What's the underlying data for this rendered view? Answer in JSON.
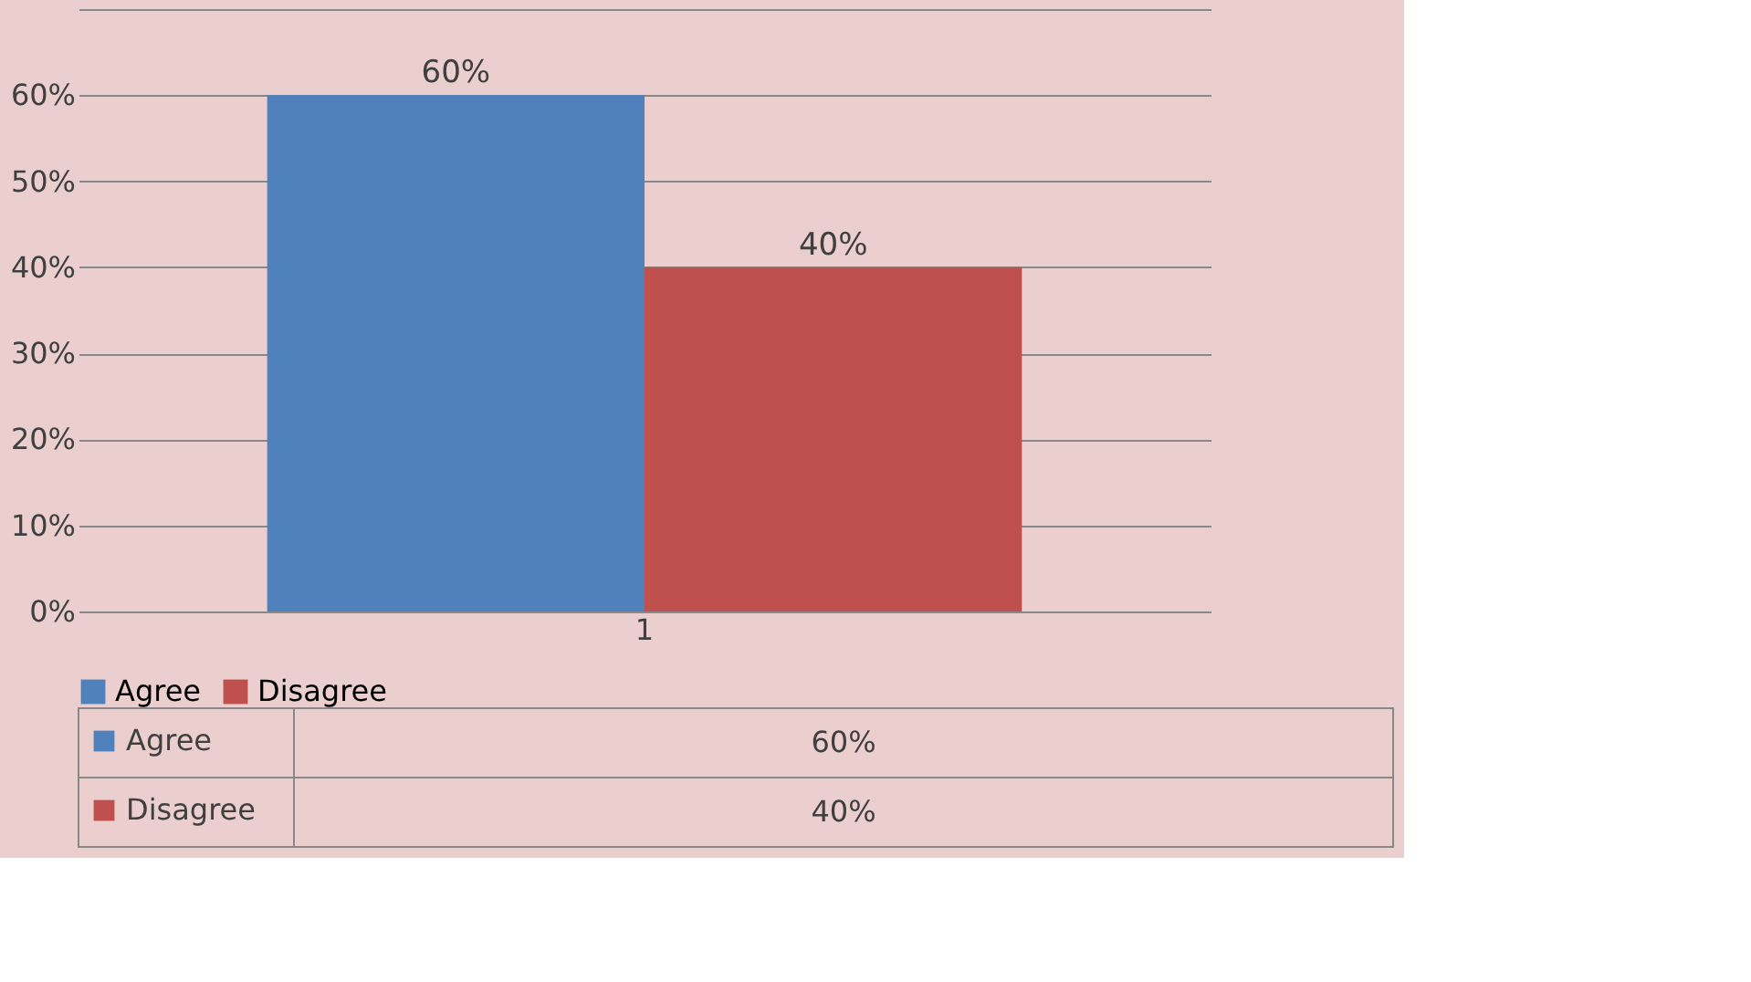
{
  "chart_data": {
    "type": "bar",
    "categories": [
      "1"
    ],
    "series": [
      {
        "name": "Agree",
        "color": "#4f81bd",
        "values": [
          60
        ],
        "value_labels": [
          "60%"
        ]
      },
      {
        "name": "Disagree",
        "color": "#c0504d",
        "values": [
          40
        ],
        "value_labels": [
          "40%"
        ]
      }
    ],
    "ylim": [
      0,
      70
    ],
    "yticks": [
      {
        "value": 0,
        "label": "0%"
      },
      {
        "value": 10,
        "label": "10%"
      },
      {
        "value": 20,
        "label": "20%"
      },
      {
        "value": 30,
        "label": "30%"
      },
      {
        "value": 40,
        "label": "40%"
      },
      {
        "value": 50,
        "label": "50%"
      },
      {
        "value": 60,
        "label": "60%"
      },
      {
        "value": 70,
        "label": null
      }
    ],
    "grid": "y",
    "legend": "bottom"
  }
}
